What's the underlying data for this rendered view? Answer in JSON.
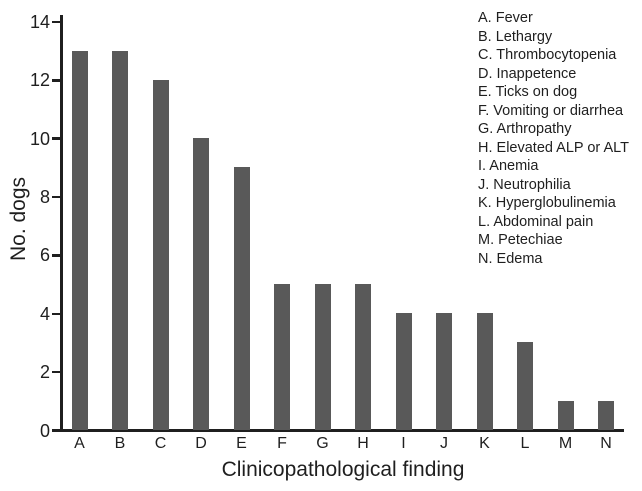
{
  "figure": {
    "background": "#ffffff",
    "text_color": "#1f1f1f"
  },
  "chart_data": {
    "type": "bar",
    "categories": [
      "A",
      "B",
      "C",
      "D",
      "E",
      "F",
      "G",
      "H",
      "I",
      "J",
      "K",
      "L",
      "M",
      "N"
    ],
    "values": [
      13,
      13,
      12,
      10,
      9,
      5,
      5,
      5,
      4,
      4,
      4,
      3,
      1,
      1
    ],
    "title": "",
    "xlabel": "Clinicopathological finding",
    "ylabel": "No. dogs",
    "ylim": [
      0,
      14
    ],
    "yticks": [
      0,
      2,
      4,
      6,
      8,
      10,
      12,
      14
    ],
    "grid": false,
    "bar_color": "#595959",
    "axis_color": "#1f1f1f",
    "legend_position": "top-right",
    "legend": [
      "A. Fever",
      "B. Lethargy",
      "C. Thrombocytopenia",
      "D. Inappetence",
      "E. Ticks on dog",
      "F. Vomiting or diarrhea",
      "G. Arthropathy",
      "H. Elevated ALP or ALT",
      "I. Anemia",
      "J. Neutrophilia",
      "K. Hyperglobulinemia",
      "L. Abdominal pain",
      "M. Petechiae",
      "N. Edema"
    ]
  }
}
